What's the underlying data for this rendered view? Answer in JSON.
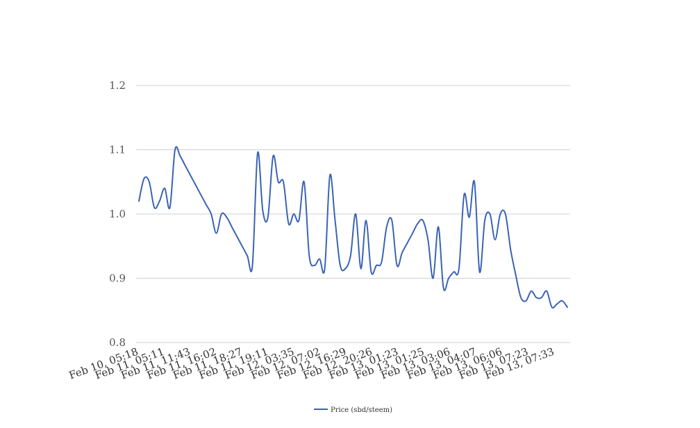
{
  "chart_data": {
    "type": "line",
    "title": "",
    "xlabel": "",
    "ylabel": "",
    "ylim": [
      0.8,
      1.2
    ],
    "yticks": [
      "0.8",
      "0.9",
      "1.0",
      "1.1",
      "1.2"
    ],
    "ytick_values": [
      0.8,
      0.9,
      1.0,
      1.1,
      1.2
    ],
    "grid": true,
    "legend_position": "bottom-center",
    "x_tick_labels": [
      "Feb 10, 05:18",
      "Feb 11, 05:11",
      "Feb 11, 11:43",
      "Feb 11, 16:02",
      "Feb 11, 18:27",
      "Feb 11, 19:11",
      "Feb 12, 03:35",
      "Feb 12, 07:02",
      "Feb 12, 16:29",
      "Feb 12, 20:26",
      "Feb 13, 01:23",
      "Feb 13, 01:25",
      "Feb 13, 03:06",
      "Feb 13, 04:07",
      "Feb 13, 06:06",
      "Feb 13, 07:23",
      "Feb 13, 07:33"
    ],
    "series": [
      {
        "name": "Price (sbd/steem)",
        "color": "#3a63b4",
        "values": [
          1.02,
          1.055,
          1.05,
          1.01,
          1.02,
          1.04,
          1.01,
          1.1,
          1.09,
          1.075,
          1.06,
          1.045,
          1.03,
          1.015,
          1.0,
          0.97,
          1.0,
          0.995,
          0.98,
          0.965,
          0.95,
          0.935,
          0.92,
          1.095,
          1.005,
          0.995,
          1.09,
          1.05,
          1.05,
          0.985,
          1.0,
          0.99,
          1.05,
          0.935,
          0.92,
          0.93,
          0.915,
          1.06,
          0.99,
          0.92,
          0.915,
          0.935,
          1.0,
          0.915,
          0.99,
          0.91,
          0.92,
          0.925,
          0.98,
          0.99,
          0.92,
          0.94,
          0.955,
          0.97,
          0.985,
          0.99,
          0.96,
          0.9,
          0.98,
          0.885,
          0.9,
          0.91,
          0.915,
          1.03,
          0.995,
          1.05,
          0.91,
          0.99,
          1.0,
          0.96,
          1.0,
          1.0,
          0.945,
          0.905,
          0.87,
          0.865,
          0.88,
          0.87,
          0.87,
          0.88,
          0.855,
          0.86,
          0.865,
          0.855
        ]
      }
    ]
  }
}
